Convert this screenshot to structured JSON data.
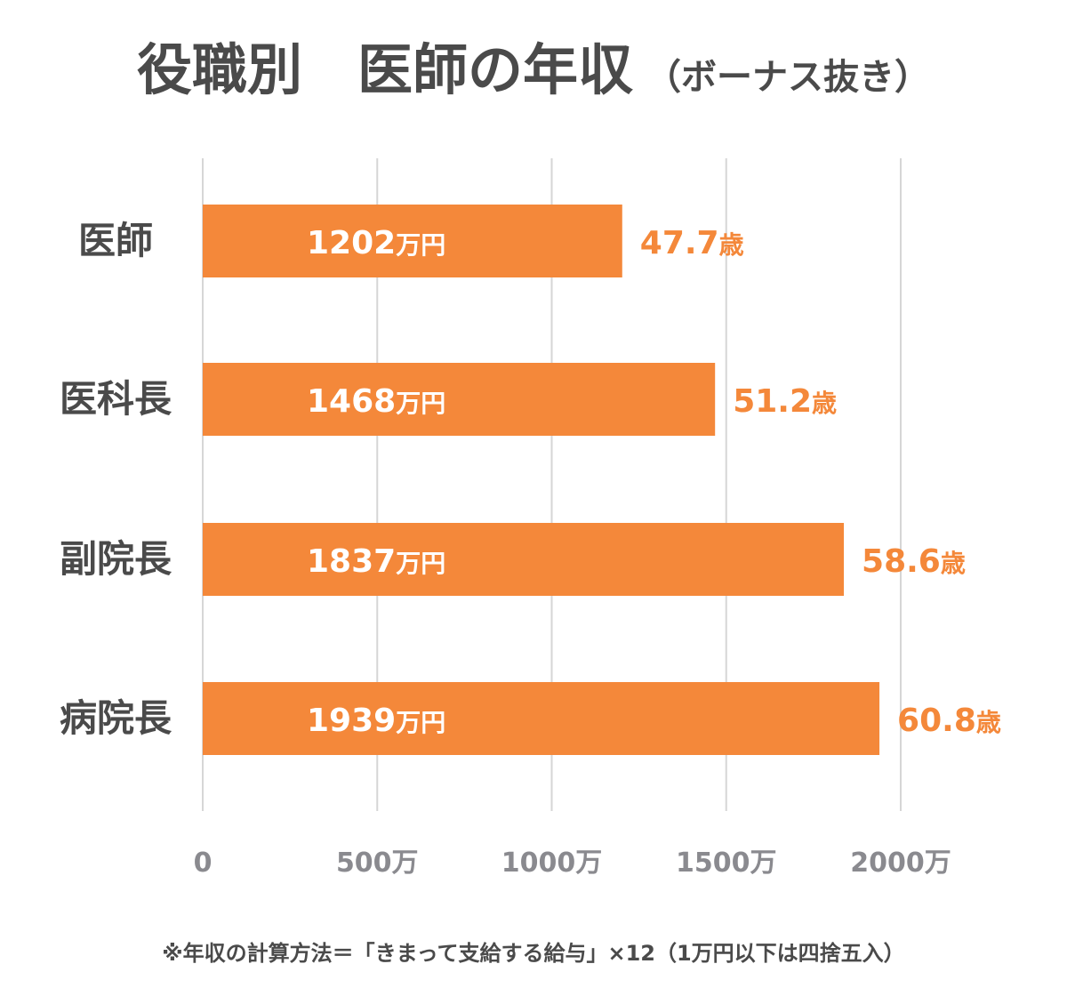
{
  "chart_data": {
    "type": "bar",
    "orientation": "horizontal",
    "title": "役職別　医師の年収",
    "subtitle": "（ボーナス抜き）",
    "categories": [
      "医師",
      "医科長",
      "副院長",
      "病院長"
    ],
    "values": [
      1202,
      1468,
      1837,
      1939
    ],
    "value_labels": [
      "1202",
      "1468",
      "1837",
      "1939"
    ],
    "value_unit": "万円",
    "ages": [
      "47.7",
      "51.2",
      "58.6",
      "60.8"
    ],
    "age_unit": "歳",
    "xlim": [
      0,
      2000
    ],
    "xticks": [
      0,
      500,
      1000,
      1500,
      2000
    ],
    "xtick_labels": [
      "0",
      "500万",
      "1000万",
      "1500万",
      "2000万"
    ],
    "grid": true,
    "note": "※年収の計算方法＝「きまって支給する給与」×12（1万円以下は四捨五入）"
  },
  "colors": {
    "bar": "#f4883a",
    "age_text": "#f4883a",
    "bar_text": "#ffffff",
    "category_text": "#4a4a4a",
    "tick_text": "#8a8a8f",
    "grid": "#d6d6d6",
    "title": "#4a4a4a"
  }
}
